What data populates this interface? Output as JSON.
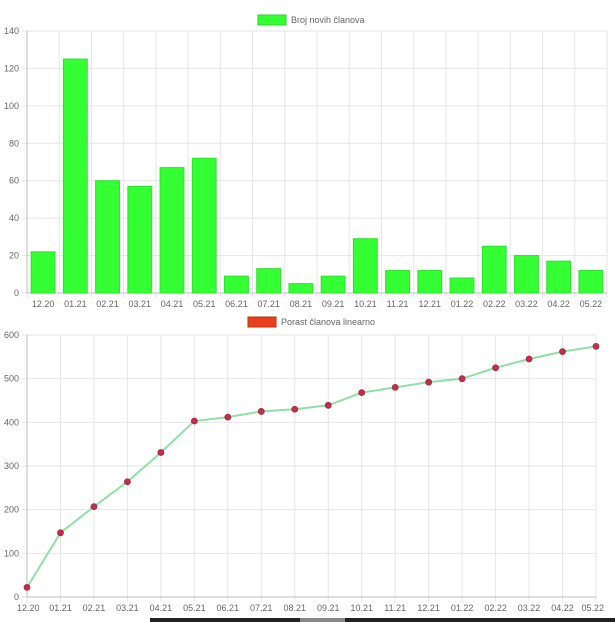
{
  "chart_data": [
    {
      "type": "bar",
      "legend": "Broj novih članova",
      "legend_placement": "top",
      "categories": [
        "12.20",
        "01.21",
        "02.21",
        "03.21",
        "04.21",
        "05.21",
        "06.21",
        "07.21",
        "08.21",
        "09.21",
        "10.21",
        "11.21",
        "12.21",
        "01.22",
        "02.22",
        "03.22",
        "04.22",
        "05.22"
      ],
      "values": [
        22,
        125,
        60,
        57,
        67,
        72,
        9,
        13,
        5,
        9,
        29,
        12,
        12,
        8,
        25,
        20,
        17,
        12
      ],
      "ylim": [
        0,
        140
      ],
      "yticks": [
        0,
        20,
        40,
        60,
        80,
        100,
        120,
        140
      ],
      "grid": true,
      "color": "#33ff33"
    },
    {
      "type": "line",
      "legend": "Porast članova linearno",
      "legend_placement": "top",
      "legend_color": "#e8401c",
      "categories": [
        "12.20",
        "01.21",
        "02.21",
        "03.21",
        "04.21",
        "05.21",
        "06.21",
        "07.21",
        "08.21",
        "09.21",
        "10.21",
        "11.21",
        "12.21",
        "01.22",
        "02.22",
        "03.22",
        "04.22",
        "05.22"
      ],
      "values": [
        22,
        147,
        207,
        264,
        331,
        403,
        412,
        425,
        430,
        439,
        468,
        480,
        492,
        500,
        525,
        545,
        562,
        574
      ],
      "ylim": [
        0,
        600
      ],
      "yticks": [
        0,
        100,
        200,
        300,
        400,
        500,
        600
      ],
      "grid": true,
      "line_color": "#8fe0a8",
      "point_color": "#c0304a"
    }
  ]
}
